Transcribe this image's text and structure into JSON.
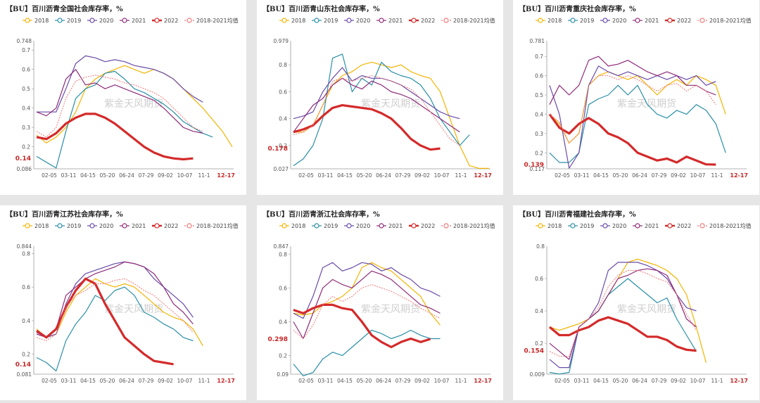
{
  "legend": [
    "2018",
    "2019",
    "2020",
    "2021",
    "2022",
    "2018-2021均值"
  ],
  "colors": [
    "#f2b400",
    "#2a8fa6",
    "#6a4aa8",
    "#8e2b7a",
    "#d42a2a",
    "#f07878"
  ],
  "watermark": "紫金天风期货",
  "x_ticks": [
    "02-05",
    "03-11",
    "04-15",
    "05-20",
    "06-24",
    "07-29",
    "09-02",
    "10-07",
    "11-1"
  ],
  "last_tick": "12-17",
  "chart_data": [
    {
      "type": "line",
      "title": "【BU】百川沥青全国社会库存率，%",
      "ylim": [
        0.086,
        0.748
      ],
      "y_ticks": [
        0.1,
        0.2,
        0.3,
        0.4,
        0.5,
        0.6,
        0.7
      ],
      "y_min_label": "0.086",
      "y_max_label": "0.748",
      "last_value": 0.14,
      "last_value_label": "0.14",
      "series": [
        {
          "name": "2018",
          "values": [
            0.26,
            0.22,
            0.25,
            0.3,
            0.38,
            0.5,
            0.55,
            0.58,
            0.6,
            0.62,
            0.6,
            0.58,
            0.6,
            0.58,
            0.55,
            0.5,
            0.45,
            0.4,
            0.34,
            0.28,
            0.2
          ]
        },
        {
          "name": "2019",
          "values": [
            0.15,
            0.12,
            0.09,
            0.28,
            0.45,
            0.5,
            0.52,
            0.58,
            0.59,
            0.55,
            0.5,
            0.48,
            0.45,
            0.42,
            0.38,
            0.33,
            0.3,
            0.27,
            0.25
          ]
        },
        {
          "name": "2020",
          "values": [
            0.38,
            0.38,
            0.38,
            0.5,
            0.63,
            0.67,
            0.66,
            0.64,
            0.65,
            0.64,
            0.62,
            0.61,
            0.6,
            0.58,
            0.55,
            0.5,
            0.46,
            0.43
          ]
        },
        {
          "name": "2021",
          "values": [
            0.38,
            0.36,
            0.4,
            0.55,
            0.6,
            0.52,
            0.53,
            0.5,
            0.52,
            0.5,
            0.48,
            0.46,
            0.44,
            0.4,
            0.35,
            0.3,
            0.28,
            0.27
          ]
        },
        {
          "name": "2022",
          "values": [
            0.25,
            0.24,
            0.27,
            0.32,
            0.35,
            0.37,
            0.37,
            0.35,
            0.32,
            0.28,
            0.24,
            0.2,
            0.17,
            0.15,
            0.14,
            0.135,
            0.14
          ]
        },
        {
          "name": "2018-2021均值",
          "values": [
            0.28,
            0.25,
            0.3,
            0.45,
            0.54,
            0.56,
            0.57,
            0.56,
            0.55,
            0.53,
            0.52,
            0.5,
            0.48,
            0.45,
            0.4,
            0.35,
            0.3,
            0.28
          ]
        }
      ]
    },
    {
      "type": "line",
      "title": "【BU】百川沥青山东社会库存率，%",
      "ylim": [
        0.027,
        0.979
      ],
      "y_ticks": [
        0.2,
        0.4,
        0.6,
        0.8
      ],
      "y_min_label": "0.027",
      "y_max_label": "0.979",
      "last_value": 0.178,
      "last_value_label": "0.178",
      "series": [
        {
          "name": "2018",
          "values": [
            0.3,
            0.3,
            0.35,
            0.5,
            0.65,
            0.72,
            0.75,
            0.8,
            0.82,
            0.8,
            0.78,
            0.8,
            0.75,
            0.72,
            0.7,
            0.6,
            0.4,
            0.2,
            0.05,
            0.03,
            0.03
          ]
        },
        {
          "name": "2019",
          "values": [
            0.05,
            0.1,
            0.2,
            0.4,
            0.85,
            0.88,
            0.6,
            0.7,
            0.65,
            0.82,
            0.75,
            0.72,
            0.7,
            0.65,
            0.55,
            0.4,
            0.3,
            0.2,
            0.28
          ]
        },
        {
          "name": "2020",
          "values": [
            0.4,
            0.42,
            0.45,
            0.6,
            0.7,
            0.78,
            0.68,
            0.72,
            0.7,
            0.7,
            0.68,
            0.65,
            0.6,
            0.55,
            0.5,
            0.45,
            0.42,
            0.4
          ]
        },
        {
          "name": "2021",
          "values": [
            0.3,
            0.4,
            0.5,
            0.55,
            0.65,
            0.7,
            0.65,
            0.62,
            0.68,
            0.65,
            0.6,
            0.58,
            0.55,
            0.5,
            0.45,
            0.4,
            0.35,
            0.3
          ]
        },
        {
          "name": "2022",
          "values": [
            0.3,
            0.32,
            0.35,
            0.42,
            0.48,
            0.5,
            0.49,
            0.48,
            0.47,
            0.44,
            0.4,
            0.33,
            0.25,
            0.2,
            0.17,
            0.178
          ]
        },
        {
          "name": "2018-2021均值",
          "values": [
            0.28,
            0.3,
            0.35,
            0.5,
            0.68,
            0.7,
            0.68,
            0.7,
            0.72,
            0.7,
            0.68,
            0.65,
            0.62,
            0.55,
            0.45,
            0.35,
            0.25,
            0.2
          ]
        }
      ]
    },
    {
      "type": "line",
      "title": "【BU】百川沥青重庆社会库存率，%",
      "ylim": [
        0.117,
        0.781
      ],
      "y_ticks": [
        0.2,
        0.3,
        0.4,
        0.5,
        0.6,
        0.7
      ],
      "y_min_label": "0.117",
      "y_max_label": "0.781",
      "last_value": 0.139,
      "last_value_label": "0.139",
      "series": [
        {
          "name": "2018",
          "values": [
            0.4,
            0.35,
            0.25,
            0.3,
            0.55,
            0.6,
            0.62,
            0.6,
            0.58,
            0.6,
            0.55,
            0.5,
            0.55,
            0.58,
            0.55,
            0.6,
            0.58,
            0.55,
            0.4
          ]
        },
        {
          "name": "2019",
          "values": [
            0.2,
            0.15,
            0.15,
            0.2,
            0.45,
            0.48,
            0.5,
            0.55,
            0.5,
            0.55,
            0.45,
            0.4,
            0.38,
            0.42,
            0.4,
            0.45,
            0.42,
            0.35,
            0.2
          ]
        },
        {
          "name": "2020",
          "values": [
            0.55,
            0.4,
            0.12,
            0.2,
            0.55,
            0.65,
            0.62,
            0.6,
            0.62,
            0.6,
            0.58,
            0.6,
            0.58,
            0.6,
            0.58,
            0.6,
            0.55,
            0.57
          ]
        },
        {
          "name": "2021",
          "values": [
            0.45,
            0.55,
            0.5,
            0.55,
            0.68,
            0.7,
            0.65,
            0.66,
            0.68,
            0.65,
            0.62,
            0.6,
            0.62,
            0.6,
            0.55,
            0.55,
            0.52,
            0.5
          ]
        },
        {
          "name": "2022",
          "values": [
            0.4,
            0.33,
            0.3,
            0.35,
            0.38,
            0.35,
            0.3,
            0.28,
            0.25,
            0.2,
            0.18,
            0.16,
            0.17,
            0.15,
            0.18,
            0.16,
            0.14,
            0.139
          ]
        },
        {
          "name": "2018-2021均值",
          "values": [
            0.4,
            0.36,
            0.25,
            0.3,
            0.55,
            0.6,
            0.6,
            0.58,
            0.6,
            0.58,
            0.55,
            0.52,
            0.55,
            0.56,
            0.52,
            0.55,
            0.52,
            0.45
          ]
        }
      ]
    },
    {
      "type": "line",
      "title": "【BU】百川沥青江苏社会库存率，%",
      "ylim": [
        0.081,
        0.844
      ],
      "y_ticks": [
        0.2,
        0.4,
        0.6,
        0.8
      ],
      "y_min_label": "0.081",
      "y_max_label": "0.844",
      "last_value": 0.14,
      "last_value_label": "0.14",
      "series": [
        {
          "name": "2018",
          "values": [
            0.35,
            0.3,
            0.32,
            0.45,
            0.55,
            0.6,
            0.65,
            0.62,
            0.6,
            0.62,
            0.6,
            0.55,
            0.5,
            0.45,
            0.42,
            0.4,
            0.35,
            0.25
          ]
        },
        {
          "name": "2019",
          "values": [
            0.18,
            0.15,
            0.1,
            0.28,
            0.38,
            0.45,
            0.55,
            0.52,
            0.58,
            0.6,
            0.55,
            0.45,
            0.42,
            0.38,
            0.35,
            0.3,
            0.28
          ]
        },
        {
          "name": "2020",
          "values": [
            0.33,
            0.3,
            0.32,
            0.5,
            0.62,
            0.68,
            0.7,
            0.72,
            0.74,
            0.75,
            0.74,
            0.72,
            0.65,
            0.6,
            0.55,
            0.5,
            0.42
          ]
        },
        {
          "name": "2021",
          "values": [
            0.32,
            0.3,
            0.35,
            0.55,
            0.6,
            0.65,
            0.68,
            0.7,
            0.72,
            0.75,
            0.74,
            0.72,
            0.68,
            0.6,
            0.5,
            0.45,
            0.38
          ]
        },
        {
          "name": "2022",
          "values": [
            0.34,
            0.3,
            0.35,
            0.48,
            0.58,
            0.65,
            0.62,
            0.5,
            0.4,
            0.3,
            0.25,
            0.2,
            0.16,
            0.15,
            0.14
          ]
        },
        {
          "name": "2018-2021均值",
          "values": [
            0.3,
            0.28,
            0.32,
            0.48,
            0.55,
            0.58,
            0.62,
            0.62,
            0.64,
            0.65,
            0.62,
            0.58,
            0.55,
            0.5,
            0.45,
            0.4,
            0.33
          ]
        }
      ]
    },
    {
      "type": "line",
      "title": "【BU】百川沥青浙江社会库存率，%",
      "ylim": [
        0.09,
        0.847
      ],
      "y_ticks": [
        0.2,
        0.4,
        0.6,
        0.8
      ],
      "y_min_label": "0.09",
      "y_max_label": "0.847",
      "last_value": 0.298,
      "last_value_label": "0.298",
      "series": [
        {
          "name": "2018",
          "values": [
            0.45,
            0.44,
            0.45,
            0.5,
            0.52,
            0.55,
            0.6,
            0.72,
            0.75,
            0.72,
            0.7,
            0.65,
            0.6,
            0.55,
            0.45,
            0.38
          ]
        },
        {
          "name": "2019",
          "values": [
            0.15,
            0.08,
            0.1,
            0.18,
            0.22,
            0.2,
            0.25,
            0.3,
            0.35,
            0.33,
            0.3,
            0.32,
            0.35,
            0.32,
            0.3,
            0.3
          ]
        },
        {
          "name": "2020",
          "values": [
            0.45,
            0.42,
            0.55,
            0.72,
            0.75,
            0.7,
            0.72,
            0.75,
            0.74,
            0.7,
            0.72,
            0.68,
            0.65,
            0.6,
            0.58,
            0.55
          ]
        },
        {
          "name": "2021",
          "values": [
            0.4,
            0.3,
            0.45,
            0.6,
            0.65,
            0.62,
            0.6,
            0.65,
            0.7,
            0.68,
            0.65,
            0.6,
            0.55,
            0.5,
            0.48,
            0.45
          ]
        },
        {
          "name": "2022",
          "values": [
            0.47,
            0.45,
            0.48,
            0.5,
            0.5,
            0.48,
            0.47,
            0.4,
            0.32,
            0.28,
            0.25,
            0.28,
            0.3,
            0.28,
            0.298
          ]
        },
        {
          "name": "2018-2021均值",
          "values": [
            0.35,
            0.3,
            0.38,
            0.5,
            0.55,
            0.52,
            0.55,
            0.6,
            0.62,
            0.6,
            0.58,
            0.55,
            0.52,
            0.48,
            0.45,
            0.42
          ]
        }
      ]
    },
    {
      "type": "line",
      "title": "【BU】百川沥青福建社会库存率，%",
      "ylim": [
        0.009,
        0.8
      ],
      "y_ticks": [
        0.2,
        0.4,
        0.6,
        0.8
      ],
      "y_min_label": "0.009",
      "y_max_label": "0.8",
      "last_value": 0.154,
      "last_value_label": "0.154",
      "series": [
        {
          "name": "2018",
          "values": [
            0.3,
            0.28,
            0.3,
            0.32,
            0.35,
            0.4,
            0.5,
            0.6,
            0.7,
            0.72,
            0.7,
            0.68,
            0.65,
            0.6,
            0.5,
            0.3,
            0.08
          ]
        },
        {
          "name": "2019",
          "values": [
            0.02,
            0.01,
            0.02,
            0.3,
            0.35,
            0.4,
            0.5,
            0.55,
            0.6,
            0.55,
            0.5,
            0.45,
            0.48,
            0.35,
            0.25,
            0.15
          ]
        },
        {
          "name": "2020",
          "values": [
            0.1,
            0.05,
            0.05,
            0.3,
            0.35,
            0.45,
            0.65,
            0.7,
            0.7,
            0.7,
            0.68,
            0.65,
            0.6,
            0.5,
            0.42,
            0.4
          ]
        },
        {
          "name": "2021",
          "values": [
            0.2,
            0.15,
            0.1,
            0.3,
            0.35,
            0.4,
            0.5,
            0.6,
            0.62,
            0.65,
            0.66,
            0.65,
            0.62,
            0.5,
            0.35,
            0.3
          ]
        },
        {
          "name": "2022",
          "values": [
            0.3,
            0.25,
            0.25,
            0.28,
            0.3,
            0.34,
            0.36,
            0.34,
            0.32,
            0.28,
            0.24,
            0.24,
            0.22,
            0.18,
            0.16,
            0.154
          ]
        },
        {
          "name": "2018-2021均值",
          "values": [
            0.15,
            0.12,
            0.12,
            0.3,
            0.35,
            0.42,
            0.55,
            0.62,
            0.65,
            0.65,
            0.63,
            0.6,
            0.58,
            0.5,
            0.38,
            0.28
          ]
        }
      ]
    }
  ]
}
